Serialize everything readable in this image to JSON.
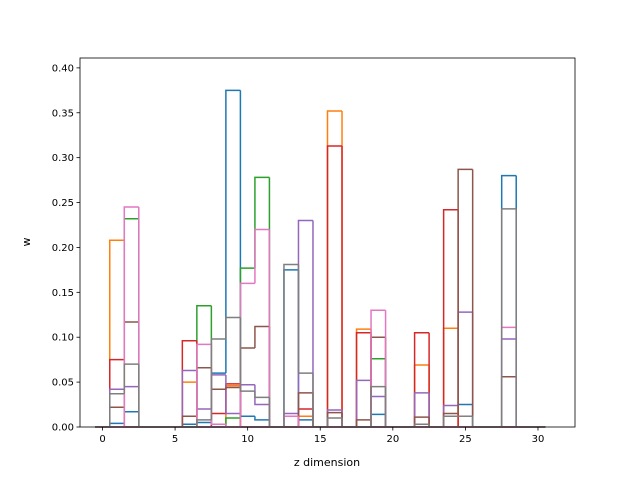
{
  "chart_data": {
    "type": "histogram",
    "xlabel": "z dimension",
    "ylabel": "w",
    "bins": [
      -0.5,
      0.5,
      1.5,
      2.5,
      3.5,
      4.5,
      5.5,
      6.5,
      7.5,
      8.5,
      9.5,
      10.5,
      11.5,
      12.5,
      13.5,
      14.5,
      15.5,
      16.5,
      17.5,
      18.5,
      19.5,
      20.5,
      21.5,
      22.5,
      23.5,
      24.5,
      25.5,
      26.5,
      27.5,
      28.5,
      29.5,
      30.5
    ],
    "series": [
      {
        "color": "#1f77b4",
        "values": [
          0,
          0.004,
          0.017,
          0,
          0,
          0,
          0.003,
          0.005,
          0.06,
          0.375,
          0.012,
          0.008,
          0,
          0.175,
          0.008,
          0,
          0,
          0,
          0,
          0.014,
          0,
          0,
          0,
          0,
          0,
          0.025,
          0,
          0,
          0.28,
          0,
          0
        ]
      },
      {
        "color": "#ff7f0e",
        "values": [
          0,
          0.208,
          0,
          0,
          0,
          0,
          0.05,
          0,
          0,
          0.046,
          0,
          0,
          0,
          0,
          0.012,
          0,
          0.352,
          0,
          0.109,
          0,
          0,
          0,
          0.069,
          0,
          0.11,
          0,
          0,
          0,
          0,
          0,
          0
        ]
      },
      {
        "color": "#2ca02c",
        "values": [
          0,
          0,
          0.232,
          0,
          0,
          0,
          0,
          0.135,
          0,
          0.01,
          0.177,
          0.278,
          0,
          0,
          0,
          0,
          0,
          0,
          0,
          0.076,
          0,
          0,
          0,
          0,
          0,
          0,
          0,
          0,
          0,
          0,
          0
        ]
      },
      {
        "color": "#d62728",
        "values": [
          0,
          0.075,
          0,
          0,
          0,
          0,
          0.096,
          0,
          0.015,
          0.048,
          0,
          0,
          0,
          0,
          0.02,
          0,
          0.313,
          0,
          0.105,
          0,
          0,
          0,
          0.105,
          0,
          0.242,
          0,
          0,
          0,
          0,
          0,
          0
        ]
      },
      {
        "color": "#9467bd",
        "values": [
          0,
          0.042,
          0.045,
          0,
          0,
          0,
          0.063,
          0.02,
          0.058,
          0.015,
          0.047,
          0.025,
          0,
          0.015,
          0.23,
          0,
          0.019,
          0,
          0.052,
          0.034,
          0,
          0,
          0.038,
          0,
          0.024,
          0.128,
          0,
          0,
          0.098,
          0,
          0
        ]
      },
      {
        "color": "#8c564b",
        "values": [
          0,
          0.022,
          0.117,
          0,
          0,
          0,
          0.012,
          0.066,
          0.042,
          0.044,
          0.088,
          0.112,
          0,
          0,
          0.038,
          0,
          0.016,
          0,
          0.008,
          0.1,
          0,
          0,
          0.011,
          0,
          0.015,
          0.287,
          0,
          0,
          0.056,
          0,
          0
        ]
      },
      {
        "color": "#e377c2",
        "values": [
          0,
          0,
          0.245,
          0,
          0,
          0,
          0,
          0.092,
          0.003,
          0,
          0.16,
          0.22,
          0,
          0.012,
          0,
          0,
          0,
          0,
          0,
          0.13,
          0,
          0,
          0,
          0,
          0,
          0,
          0,
          0,
          0.111,
          0,
          0
        ]
      },
      {
        "color": "#7f7f7f",
        "values": [
          0,
          0.037,
          0.07,
          0,
          0,
          0,
          0,
          0.008,
          0.098,
          0.122,
          0.04,
          0.033,
          0,
          0.181,
          0.06,
          0,
          0.01,
          0,
          0,
          0.045,
          0,
          0,
          0.003,
          0,
          0.012,
          0.012,
          0,
          0,
          0.243,
          0,
          0
        ]
      }
    ],
    "xlim": [
      -1.55,
      32.55
    ],
    "xticks": [
      0,
      5,
      10,
      15,
      20,
      25,
      30
    ],
    "ylim": [
      0,
      0.411
    ],
    "yticks": [
      {
        "value": 0,
        "label": "0.00"
      },
      0.05,
      {
        "value": 0.1,
        "label": "0.10"
      },
      0.15,
      {
        "value": 0.2,
        "label": "0.20"
      },
      0.25,
      {
        "value": 0.3,
        "label": "0.30"
      },
      0.35,
      {
        "value": 0.4,
        "label": "0.40"
      }
    ]
  }
}
